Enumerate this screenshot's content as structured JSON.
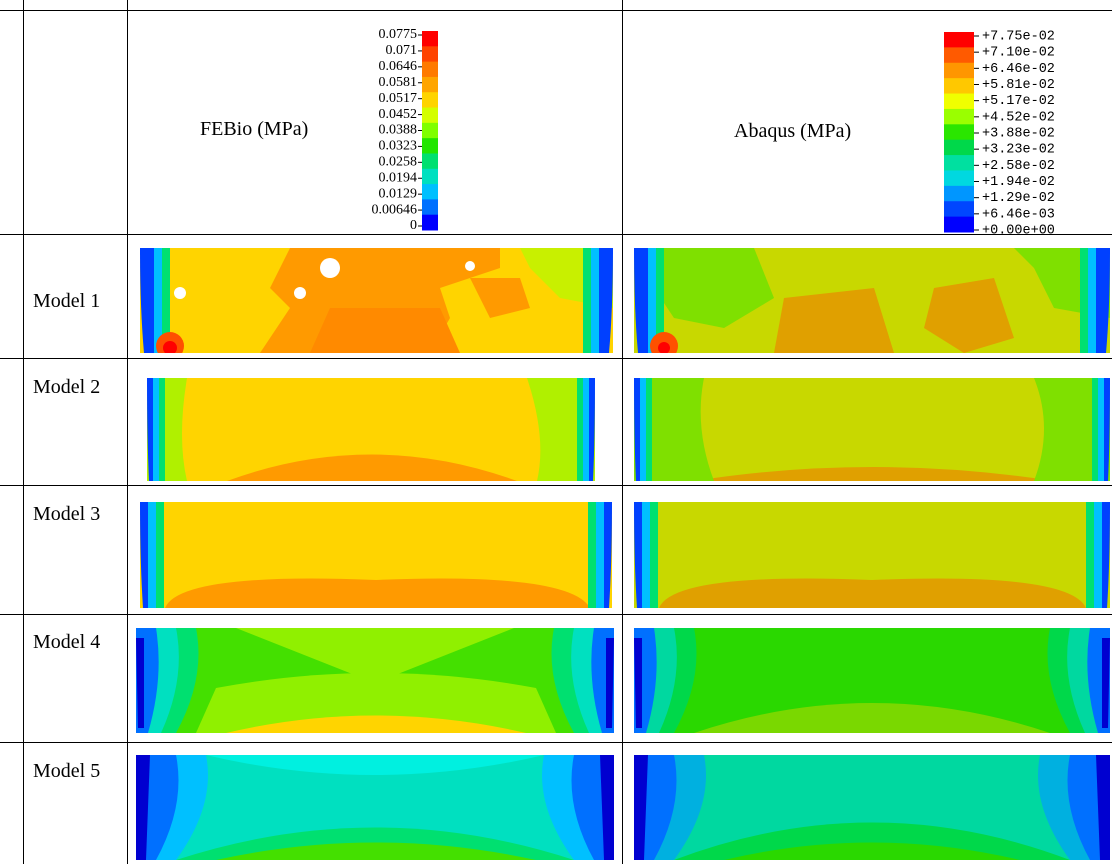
{
  "header": {
    "febio_label": "FEBio (MPa)",
    "abaqus_label": "Abaqus (MPa)"
  },
  "legends": {
    "febio": {
      "labels": [
        "0.0775",
        "0.071",
        "0.0646",
        "0.0581",
        "0.0517",
        "0.0452",
        "0.0388",
        "0.0323",
        "0.0258",
        "0.0194",
        "0.0129",
        "0.00646",
        "0"
      ],
      "colors": [
        "#ff0000",
        "#ff4400",
        "#ff7a00",
        "#ffa500",
        "#ffd400",
        "#d4ff00",
        "#7fff00",
        "#22e600",
        "#00e070",
        "#00e0c0",
        "#00c0ff",
        "#0070ff",
        "#0000ff"
      ]
    },
    "abaqus": {
      "labels": [
        "+7.75e-02",
        "+7.10e-02",
        "+6.46e-02",
        "+5.81e-02",
        "+5.17e-02",
        "+4.52e-02",
        "+3.88e-02",
        "+3.23e-02",
        "+2.58e-02",
        "+1.94e-02",
        "+1.29e-02",
        "+6.46e-03",
        "+0.00e+00"
      ],
      "colors": [
        "#ff0000",
        "#ff5a00",
        "#ff9600",
        "#ffc800",
        "#f0ff00",
        "#9aff00",
        "#2ae600",
        "#00d84a",
        "#00e0a0",
        "#00d8e0",
        "#0096ff",
        "#0046ff",
        "#0000ff"
      ]
    }
  },
  "rows": [
    {
      "label": "Model 1"
    },
    {
      "label": "Model 2"
    },
    {
      "label": "Model 3"
    },
    {
      "label": "Model 4"
    },
    {
      "label": "Model 5"
    }
  ]
}
